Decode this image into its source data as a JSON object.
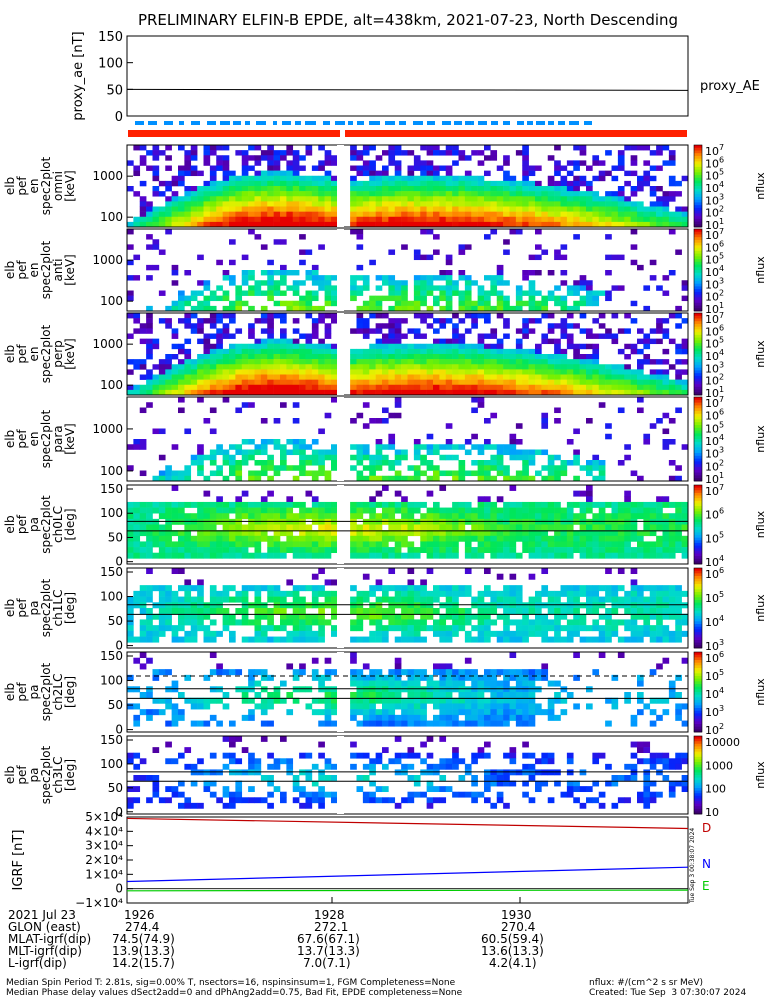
{
  "title": "PRELIMINARY ELFIN-B EPDE, alt=438km, 2021-07-23, North Descending",
  "chart_data": [
    {
      "type": "line",
      "panel": "proxy_ae",
      "ylabel": "proxy_ae [nT]",
      "legend": "proxy_AE",
      "ylim": [
        0,
        150
      ],
      "yticks": [
        "150",
        "100",
        "50",
        "0"
      ],
      "series": [
        {
          "name": "proxy_AE",
          "x": [
            "19:25:30",
            "19:31:30"
          ],
          "values": [
            50,
            48
          ]
        }
      ]
    },
    {
      "type": "heatmap",
      "panel": "pef energy omni",
      "ylabel": "elb pef en spec2plot omni [keV]",
      "yticks": [
        "1000",
        "100"
      ],
      "zlabel": "nflux",
      "ztick_exponents": [
        "7",
        "6",
        "5",
        "4",
        "3",
        "2",
        "1"
      ]
    },
    {
      "type": "heatmap",
      "panel": "pef energy anti",
      "ylabel": "elb pef en spec2plot anti [keV]",
      "yticks": [
        "1000",
        "100"
      ],
      "zlabel": "nflux",
      "ztick_exponents": [
        "7",
        "6",
        "5",
        "4",
        "3",
        "2",
        "1"
      ]
    },
    {
      "type": "heatmap",
      "panel": "pef energy perp",
      "ylabel": "elb pef en spec2plot perp [keV]",
      "yticks": [
        "1000",
        "100"
      ],
      "zlabel": "nflux",
      "ztick_exponents": [
        "7",
        "6",
        "5",
        "4",
        "3",
        "2",
        "1"
      ]
    },
    {
      "type": "heatmap",
      "panel": "pef energy para",
      "ylabel": "elb pef en spec2plot para [keV]",
      "yticks": [
        "1000",
        "100"
      ],
      "zlabel": "nflux",
      "ztick_exponents": [
        "7",
        "6",
        "5",
        "4",
        "3",
        "2",
        "1"
      ]
    },
    {
      "type": "heatmap",
      "panel": "pa ch0LC",
      "ylabel": "elb pef pa spec2plot ch0LC [deg]",
      "yticks": [
        "150",
        "100",
        "50",
        "0"
      ],
      "zlabel": "nflux",
      "ztick_exponents": [
        "7",
        "6",
        "5",
        "4"
      ]
    },
    {
      "type": "heatmap",
      "panel": "pa ch1LC",
      "ylabel": "elb pef pa spec2plot ch1LC [deg]",
      "yticks": [
        "150",
        "100",
        "50",
        "0"
      ],
      "zlabel": "nflux",
      "ztick_exponents": [
        "6",
        "5",
        "4",
        "3"
      ]
    },
    {
      "type": "heatmap",
      "panel": "pa ch2LC",
      "ylabel": "elb pef pa spec2plot ch2LC [deg]",
      "yticks": [
        "150",
        "100",
        "50",
        "0"
      ],
      "zlabel": "nflux",
      "ztick_exponents": [
        "6",
        "5",
        "4",
        "3",
        "2"
      ]
    },
    {
      "type": "heatmap",
      "panel": "pa ch3LC",
      "ylabel": "elb pef pa spec2plot ch3LC [deg]",
      "yticks": [
        "150",
        "100",
        "50",
        "0"
      ],
      "zlabel": "nflux",
      "zticks": [
        "10000",
        "1000",
        "100",
        "10"
      ]
    },
    {
      "type": "line",
      "panel": "igrf",
      "ylabel": "IGRF [nT]",
      "ylim": [
        -10000,
        50000
      ],
      "ytick_labels": [
        "5×10⁴",
        "4×10⁴",
        "3×10⁴",
        "2×10⁴",
        "1×10⁴",
        "0",
        "−1×10⁴"
      ],
      "series": [
        {
          "name": "D",
          "color": "#c00000",
          "values": [
            49000,
            42000
          ]
        },
        {
          "name": "N",
          "color": "#0000ff",
          "values": [
            5000,
            15000
          ]
        },
        {
          "name": "E",
          "color": "#00cc00",
          "values": [
            -1500,
            -1000
          ]
        }
      ]
    }
  ],
  "vertical_stamp": "Tue Sep  3 00:38:07 2024",
  "xaxis": {
    "rows": [
      [
        "2021 Jul 23",
        "1926",
        "1928",
        "1930"
      ],
      [
        "GLON (east)",
        "274.4",
        "272.1",
        "270.4"
      ],
      [
        "MLAT-igrf(dip)",
        "74.5(74.9)",
        "67.6(67.1)",
        "60.5(59.4)"
      ],
      [
        "MLT-igrf(dip)",
        "13.9(13.3)",
        "13.7(13.3)",
        "13.6(13.3)"
      ],
      [
        "L-igrf(dip)",
        "14.2(15.7)",
        "7.0(7.1)",
        "4.2(4.1)"
      ]
    ]
  },
  "footer": {
    "line1": "Median Spin Period T: 2.81s, sig=0.00% T, nsectors=16, nspinsinsum=1, FGM Completeness=None",
    "line2": "Median Phase delay values dSect2add=0 and dPhAng2add=0.75, Bad Fit, EPDE completeness=None",
    "right1": "nflux: #/(cm^2 s sr MeV)",
    "right2": "Created: Tue Sep  3 07:30:07 2024"
  }
}
